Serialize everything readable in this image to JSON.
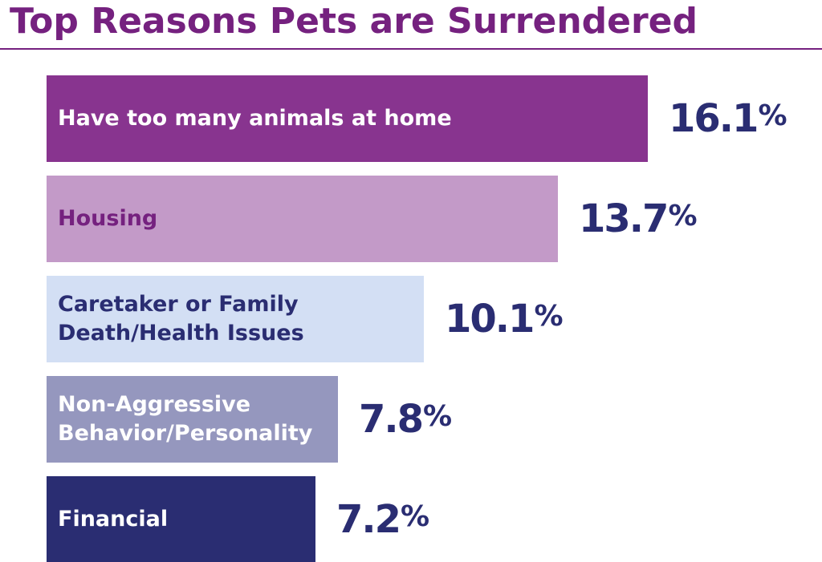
{
  "chart_data": {
    "type": "bar",
    "orientation": "horizontal",
    "title": "Top Reasons Pets are Surrendered",
    "categories": [
      "Have too many animals at home",
      "Housing",
      "Caretaker or Family\nDeath/Health Issues",
      "Non-Aggressive\nBehavior/Personality",
      "Financial"
    ],
    "values": [
      16.1,
      13.7,
      10.1,
      7.8,
      7.2
    ],
    "value_labels": [
      "16.1",
      "13.7",
      "10.1",
      "7.8",
      "7.2"
    ],
    "value_unit": "%",
    "xlim": [
      0,
      16.1
    ],
    "grid": false,
    "legend": "none",
    "colors": {
      "title": "#75217F",
      "value_text": "#2A2D72",
      "bars": [
        "#88348F",
        "#C39AC8",
        "#D3DFF4",
        "#9597BE",
        "#2A2D72"
      ],
      "bar_text": [
        "#FFFFFF",
        "#75217F",
        "#2A2D72",
        "#FFFFFF",
        "#FFFFFF"
      ]
    }
  }
}
